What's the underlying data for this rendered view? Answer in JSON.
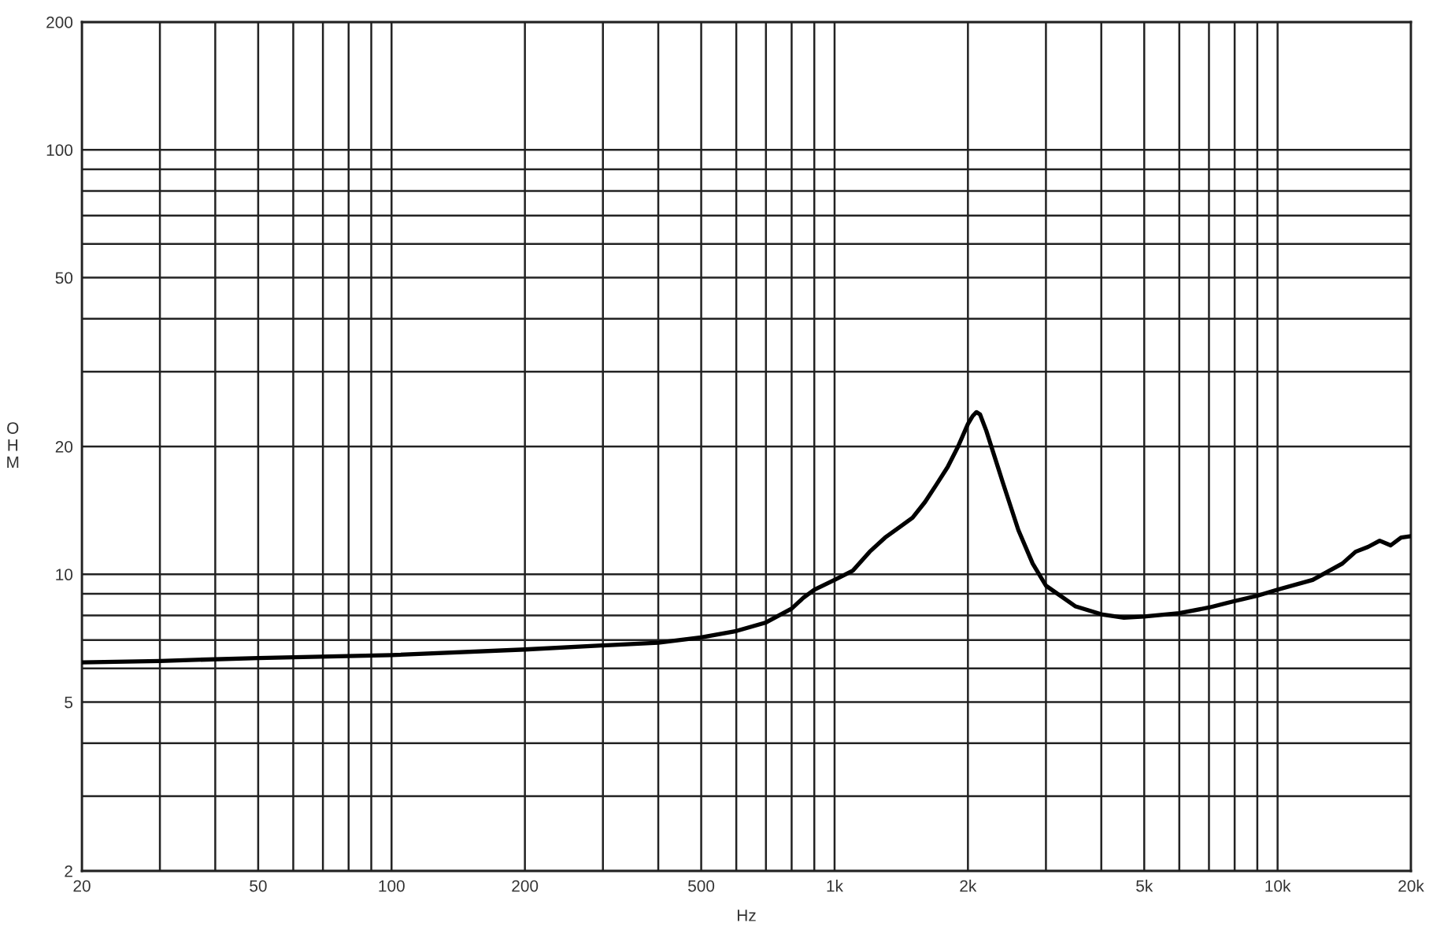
{
  "chart_data": {
    "type": "line",
    "xlabel": "Hz",
    "ylabel": "OHM",
    "log": "xy",
    "x": [
      20,
      30,
      50,
      100,
      200,
      300,
      400,
      500,
      600,
      700,
      800,
      850,
      900,
      1000,
      1100,
      1200,
      1300,
      1400,
      1500,
      1600,
      1700,
      1800,
      1900,
      2000,
      2050,
      2090,
      2130,
      2200,
      2400,
      2600,
      2800,
      3000,
      3500,
      4000,
      4500,
      5000,
      6000,
      7000,
      8000,
      9000,
      10000,
      12000,
      14000,
      15000,
      16000,
      17000,
      18000,
      19000,
      20000
    ],
    "series": [
      {
        "color": "#000000",
        "values": [
          6.2,
          6.25,
          6.35,
          6.45,
          6.65,
          6.8,
          6.9,
          7.1,
          7.35,
          7.7,
          8.3,
          8.8,
          9.2,
          9.7,
          10.2,
          11.3,
          12.2,
          12.9,
          13.6,
          14.8,
          16.3,
          17.9,
          20,
          22.6,
          23.6,
          24.1,
          23.8,
          21.8,
          16.4,
          12.7,
          10.6,
          9.4,
          8.4,
          8.05,
          7.9,
          7.95,
          8.1,
          8.35,
          8.65,
          8.9,
          9.2,
          9.7,
          10.6,
          11.3,
          11.6,
          12,
          11.7,
          12.2,
          12.3
        ]
      }
    ],
    "xlim": [
      20,
      20000
    ],
    "ylim": [
      2,
      200
    ],
    "xticks": [
      20,
      {
        "value": 30,
        "label": null
      },
      {
        "value": 40,
        "label": null
      },
      50,
      {
        "value": 60,
        "label": null
      },
      {
        "value": 70,
        "label": null
      },
      {
        "value": 80,
        "label": null
      },
      {
        "value": 90,
        "label": null
      },
      100,
      200,
      {
        "value": 300,
        "label": null
      },
      {
        "value": 400,
        "label": null
      },
      500,
      {
        "value": 600,
        "label": null
      },
      {
        "value": 700,
        "label": null
      },
      {
        "value": 800,
        "label": null
      },
      {
        "value": 900,
        "label": null
      },
      {
        "value": 1000,
        "label": "1k"
      },
      {
        "value": 2000,
        "label": "2k"
      },
      {
        "value": 3000,
        "label": null
      },
      {
        "value": 4000,
        "label": null
      },
      {
        "value": 5000,
        "label": "5k"
      },
      {
        "value": 6000,
        "label": null
      },
      {
        "value": 7000,
        "label": null
      },
      {
        "value": 8000,
        "label": null
      },
      {
        "value": 9000,
        "label": null
      },
      {
        "value": 10000,
        "label": "10k"
      },
      {
        "value": 20000,
        "label": "20k"
      }
    ],
    "yticks": [
      2,
      {
        "value": 3,
        "label": null
      },
      {
        "value": 4,
        "label": null
      },
      5,
      {
        "value": 6,
        "label": null
      },
      {
        "value": 7,
        "label": null
      },
      {
        "value": 8,
        "label": null
      },
      {
        "value": 9,
        "label": null
      },
      10,
      20,
      {
        "value": 30,
        "label": null
      },
      {
        "value": 40,
        "label": null
      },
      50,
      {
        "value": 60,
        "label": null
      },
      {
        "value": 70,
        "label": null
      },
      {
        "value": 80,
        "label": null
      },
      {
        "value": 90,
        "label": null
      },
      100,
      200
    ],
    "grid": true
  }
}
